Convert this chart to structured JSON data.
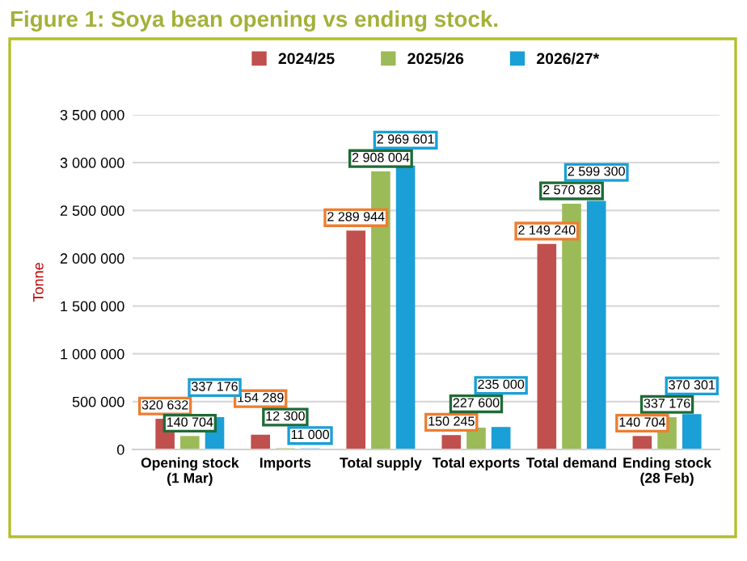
{
  "chart_data": {
    "type": "bar",
    "title": "Figure 1: Soya bean opening vs ending stock.",
    "ylabel": "Tonne",
    "categories": [
      "Opening stock\n(1 Mar)",
      "Imports",
      "Total supply",
      "Total exports",
      "Total demand",
      "Ending stock\n(28 Feb)"
    ],
    "series": [
      {
        "name": "2024/25",
        "color": "#c0504d",
        "values": [
          320632,
          154289,
          2289944,
          150245,
          2149240,
          140704
        ],
        "value_labels": [
          "320 632",
          "154 289",
          "2 289 944",
          "150 245",
          "2 149 240",
          "140 704"
        ]
      },
      {
        "name": "2025/26",
        "color": "#9bbb59",
        "values": [
          140704,
          12300,
          2908004,
          227600,
          2570828,
          337176
        ],
        "value_labels": [
          "140 704",
          "12 300",
          "2 908 004",
          "227 600",
          "2 570 828",
          "337 176"
        ]
      },
      {
        "name": "2026/27*",
        "color": "#1a9fd6",
        "values": [
          337176,
          11000,
          2969601,
          235000,
          2599300,
          370301
        ],
        "value_labels": [
          "337 176",
          "11 000",
          "2 969 601",
          "235 000",
          "2 599 300",
          "370 301"
        ]
      }
    ],
    "ylim": [
      0,
      3500000
    ],
    "yticks": [
      {
        "value": 0,
        "label": "0"
      },
      {
        "value": 500000,
        "label": "500 000"
      },
      {
        "value": 1000000,
        "label": "1 000 000"
      },
      {
        "value": 1500000,
        "label": "1 500 000"
      },
      {
        "value": 2000000,
        "label": "2 000 000"
      },
      {
        "value": 2500000,
        "label": "2 500 000"
      },
      {
        "value": 3000000,
        "label": "3 000 000"
      },
      {
        "value": 3500000,
        "label": "3 500 000"
      }
    ],
    "grid": "y",
    "legend": "top"
  }
}
